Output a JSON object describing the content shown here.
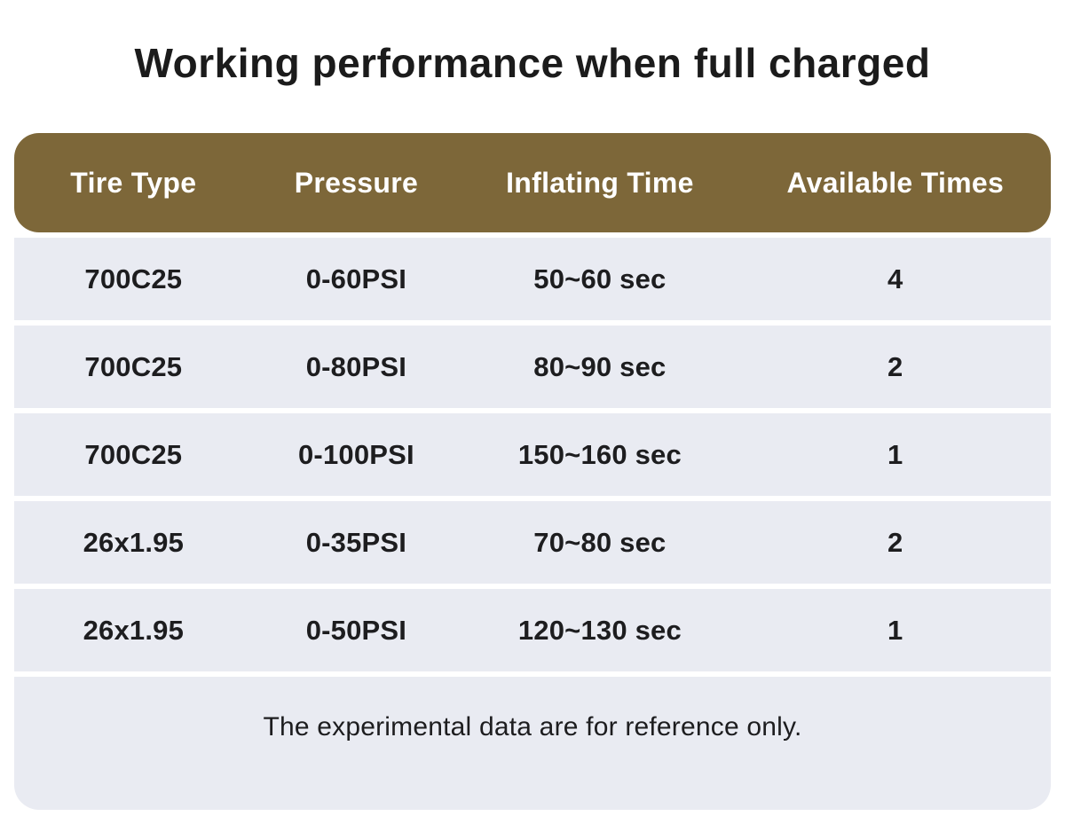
{
  "title": "Working performance when full charged",
  "chart_data": {
    "type": "table",
    "title": "Working performance when full charged",
    "columns": [
      "Tire Type",
      "Pressure",
      "Inflating Time",
      "Available Times"
    ],
    "rows": [
      [
        "700C25",
        "0-60PSI",
        "50~60 sec",
        "4"
      ],
      [
        "700C25",
        "0-80PSI",
        "80~90 sec",
        "2"
      ],
      [
        "700C25",
        "0-100PSI",
        "150~160 sec",
        "1"
      ],
      [
        "26x1.95",
        "0-35PSI",
        "70~80 sec",
        "2"
      ],
      [
        "26x1.95",
        "0-50PSI",
        "120~130 sec",
        "1"
      ]
    ],
    "footnote": "The experimental data are for reference only.",
    "layout": {
      "header_position": "top",
      "grid": "off",
      "row_style": "striped-blocks with white gaps",
      "alignment": "center"
    }
  },
  "colors": {
    "background": "#ffffff",
    "header_bg": "#7d6739",
    "header_text": "#ffffff",
    "row_bg": "#e9ebf2",
    "body_text": "#1d1d1f",
    "title_text": "#1b1b1b"
  }
}
